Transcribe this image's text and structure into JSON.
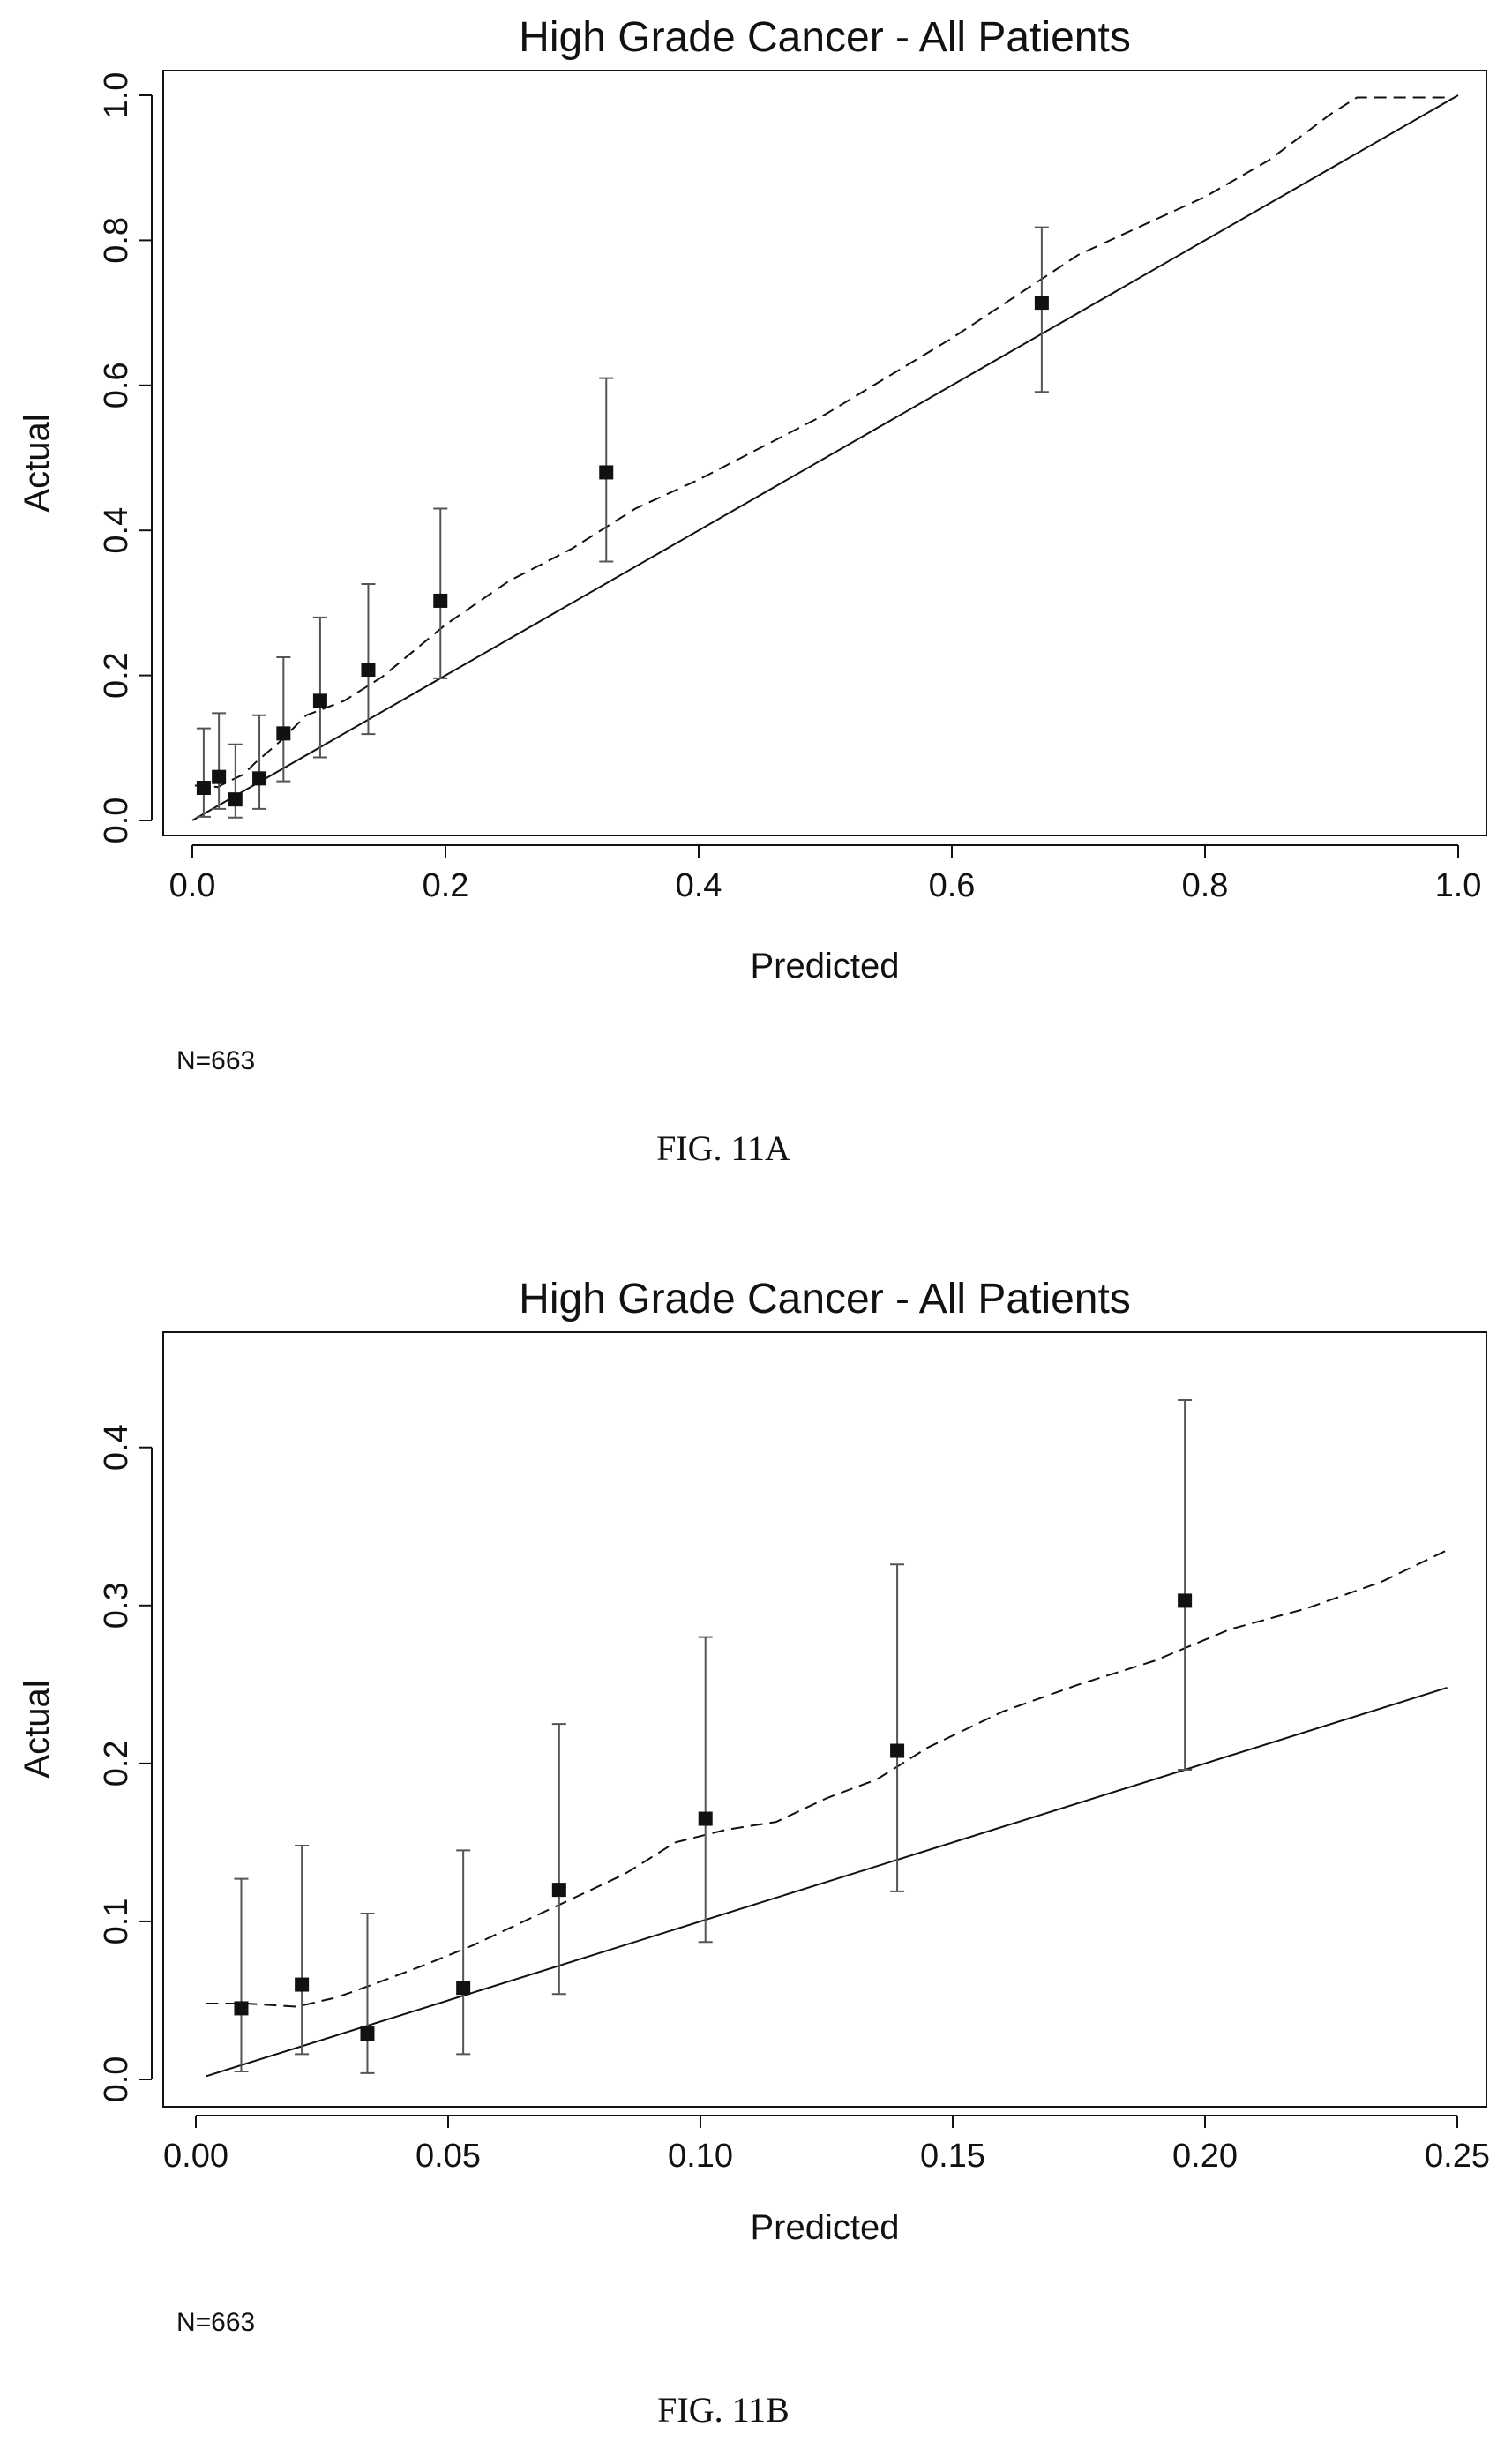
{
  "chart_data": [
    {
      "type": "scatter",
      "title": "High Grade Cancer - All Patients",
      "xlabel": "Predicted",
      "ylabel": "Actual",
      "xlim": [
        0,
        1.0
      ],
      "ylim": [
        0,
        1.0
      ],
      "xticks": [
        "0.0",
        "0.2",
        "0.4",
        "0.6",
        "0.8",
        "1.0"
      ],
      "xtick_values": [
        0,
        0.2,
        0.4,
        0.6,
        0.8,
        1.0
      ],
      "yticks": [
        "0.0",
        "0.2",
        "0.4",
        "0.6",
        "0.8",
        "1.0"
      ],
      "ytick_values": [
        0,
        0.2,
        0.4,
        0.6,
        0.8,
        1.0
      ],
      "grid": false,
      "note": "N=663",
      "caption": "FIG. 11A",
      "points": [
        {
          "x": 0.009,
          "y": 0.045,
          "lo": 0.005,
          "hi": 0.127
        },
        {
          "x": 0.021,
          "y": 0.06,
          "lo": 0.016,
          "hi": 0.148
        },
        {
          "x": 0.034,
          "y": 0.029,
          "lo": 0.004,
          "hi": 0.105
        },
        {
          "x": 0.053,
          "y": 0.058,
          "lo": 0.016,
          "hi": 0.145
        },
        {
          "x": 0.072,
          "y": 0.12,
          "lo": 0.054,
          "hi": 0.225
        },
        {
          "x": 0.101,
          "y": 0.165,
          "lo": 0.087,
          "hi": 0.28
        },
        {
          "x": 0.139,
          "y": 0.208,
          "lo": 0.119,
          "hi": 0.326
        },
        {
          "x": 0.196,
          "y": 0.303,
          "lo": 0.196,
          "hi": 0.43
        },
        {
          "x": 0.327,
          "y": 0.48,
          "lo": 0.357,
          "hi": 0.61
        },
        {
          "x": 0.671,
          "y": 0.714,
          "lo": 0.591,
          "hi": 0.818
        }
      ],
      "reference_line": [
        [
          0.0,
          0.0
        ],
        [
          1.0,
          1.0
        ]
      ],
      "smooth_curve": [
        [
          0.002,
          0.048
        ],
        [
          0.01,
          0.048
        ],
        [
          0.02,
          0.046
        ],
        [
          0.03,
          0.055
        ],
        [
          0.04,
          0.063
        ],
        [
          0.05,
          0.08
        ],
        [
          0.07,
          0.11
        ],
        [
          0.09,
          0.145
        ],
        [
          0.12,
          0.165
        ],
        [
          0.15,
          0.198
        ],
        [
          0.2,
          0.27
        ],
        [
          0.25,
          0.33
        ],
        [
          0.3,
          0.375
        ],
        [
          0.35,
          0.43
        ],
        [
          0.4,
          0.47
        ],
        [
          0.5,
          0.56
        ],
        [
          0.6,
          0.665
        ],
        [
          0.7,
          0.78
        ],
        [
          0.8,
          0.86
        ],
        [
          0.85,
          0.91
        ],
        [
          0.9,
          0.975
        ],
        [
          0.92,
          0.997
        ],
        [
          0.99,
          0.997
        ]
      ]
    },
    {
      "type": "scatter",
      "title": "High Grade Cancer - All Patients",
      "xlabel": "Predicted",
      "ylabel": "Actual",
      "xlim": [
        0,
        0.25
      ],
      "ylim": [
        0,
        0.43
      ],
      "xticks": [
        "0.00",
        "0.05",
        "0.10",
        "0.15",
        "0.20",
        "0.25"
      ],
      "xtick_values": [
        0,
        0.05,
        0.1,
        0.15,
        0.2,
        0.25
      ],
      "yticks": [
        "0.0",
        "0.1",
        "0.2",
        "0.3",
        "0.4"
      ],
      "ytick_values": [
        0,
        0.1,
        0.2,
        0.3,
        0.4
      ],
      "grid": false,
      "note": "N=663",
      "caption": "FIG. 11B",
      "points": [
        {
          "x": 0.009,
          "y": 0.045,
          "lo": 0.005,
          "hi": 0.127
        },
        {
          "x": 0.021,
          "y": 0.06,
          "lo": 0.016,
          "hi": 0.148
        },
        {
          "x": 0.034,
          "y": 0.029,
          "lo": 0.004,
          "hi": 0.105
        },
        {
          "x": 0.053,
          "y": 0.058,
          "lo": 0.016,
          "hi": 0.145
        },
        {
          "x": 0.072,
          "y": 0.12,
          "lo": 0.054,
          "hi": 0.225
        },
        {
          "x": 0.101,
          "y": 0.165,
          "lo": 0.087,
          "hi": 0.28
        },
        {
          "x": 0.139,
          "y": 0.208,
          "lo": 0.119,
          "hi": 0.326
        },
        {
          "x": 0.196,
          "y": 0.303,
          "lo": 0.196,
          "hi": 0.43
        }
      ],
      "reference_line": [
        [
          0.002,
          0.002
        ],
        [
          0.248,
          0.248
        ]
      ],
      "smooth_curve": [
        [
          0.002,
          0.048
        ],
        [
          0.01,
          0.048
        ],
        [
          0.02,
          0.046
        ],
        [
          0.028,
          0.052
        ],
        [
          0.035,
          0.06
        ],
        [
          0.045,
          0.072
        ],
        [
          0.055,
          0.085
        ],
        [
          0.065,
          0.1
        ],
        [
          0.075,
          0.115
        ],
        [
          0.085,
          0.13
        ],
        [
          0.095,
          0.15
        ],
        [
          0.105,
          0.158
        ],
        [
          0.115,
          0.163
        ],
        [
          0.125,
          0.178
        ],
        [
          0.135,
          0.19
        ],
        [
          0.145,
          0.21
        ],
        [
          0.16,
          0.233
        ],
        [
          0.175,
          0.25
        ],
        [
          0.19,
          0.265
        ],
        [
          0.205,
          0.285
        ],
        [
          0.22,
          0.298
        ],
        [
          0.235,
          0.315
        ],
        [
          0.248,
          0.335
        ]
      ]
    }
  ]
}
